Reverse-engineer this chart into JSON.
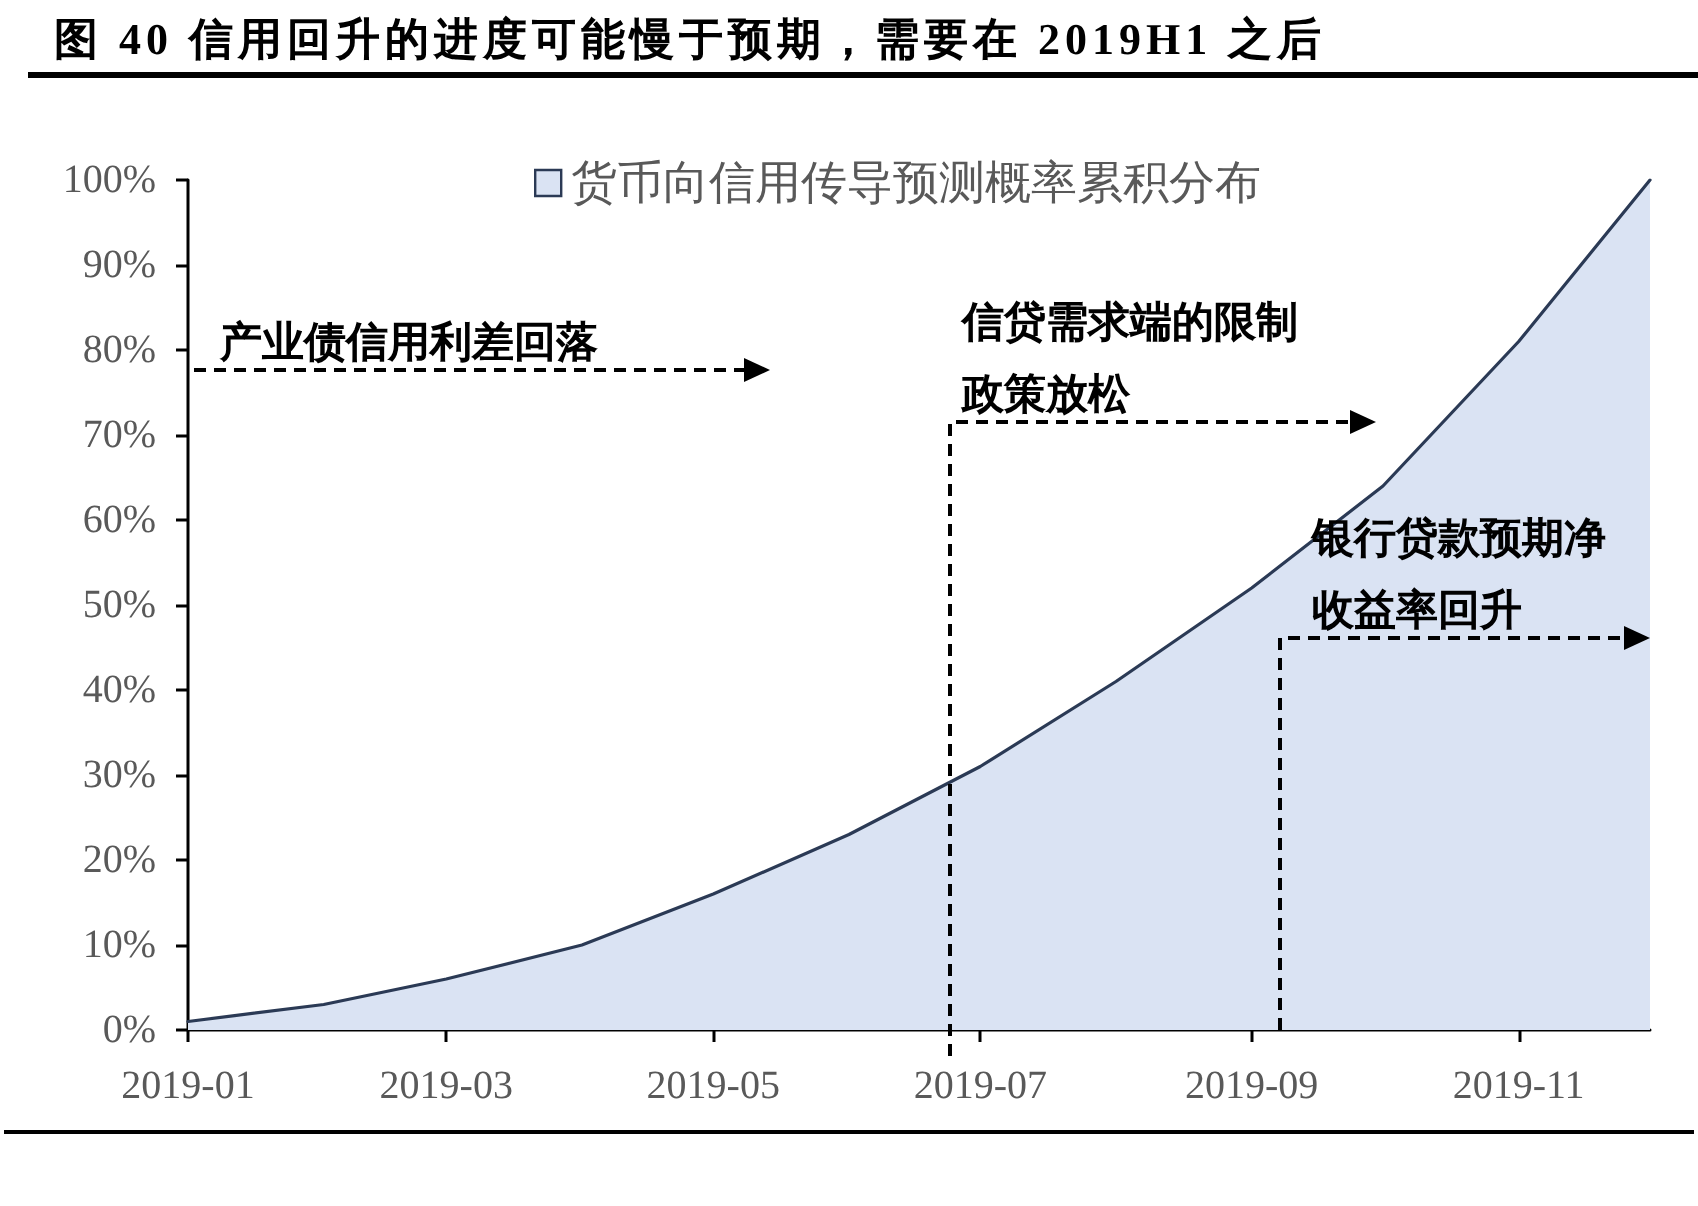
{
  "chart_data": {
    "type": "area",
    "title": "图 40 信用回升的进度可能慢于预期，需要在 2019H1 之后",
    "x": [
      "2019-01",
      "2019-02",
      "2019-03",
      "2019-04",
      "2019-05",
      "2019-06",
      "2019-07",
      "2019-08",
      "2019-09",
      "2019-10",
      "2019-11",
      "2019-12"
    ],
    "series": [
      {
        "name": "货币向信用传导预测概率累积分布",
        "color": "#dae3f3",
        "values": [
          1,
          3,
          6,
          10,
          16,
          23,
          31,
          41,
          52,
          64,
          81,
          100
        ]
      }
    ],
    "xlim": [
      "2019-01",
      "2019-12"
    ],
    "xticks": [
      "2019-01",
      "2019-03",
      "2019-05",
      "2019-07",
      "2019-09",
      "2019-11"
    ],
    "ylim": [
      0,
      100
    ],
    "yticks": [
      {
        "value": 0,
        "label": "0%"
      },
      {
        "value": 10,
        "label": "10%"
      },
      {
        "value": 20,
        "label": "20%"
      },
      {
        "value": 30,
        "label": "30%"
      },
      {
        "value": 40,
        "label": "40%"
      },
      {
        "value": 50,
        "label": "50%"
      },
      {
        "value": 60,
        "label": "60%"
      },
      {
        "value": 70,
        "label": "70%"
      },
      {
        "value": 80,
        "label": "80%"
      },
      {
        "value": 90,
        "label": "90%"
      },
      {
        "value": 100,
        "label": "100%"
      }
    ],
    "legend": "top",
    "annotations": [
      "产业债信用利差回落",
      "信贷需求端的限制政策放松",
      "银行贷款预期净收益率回升"
    ]
  }
}
